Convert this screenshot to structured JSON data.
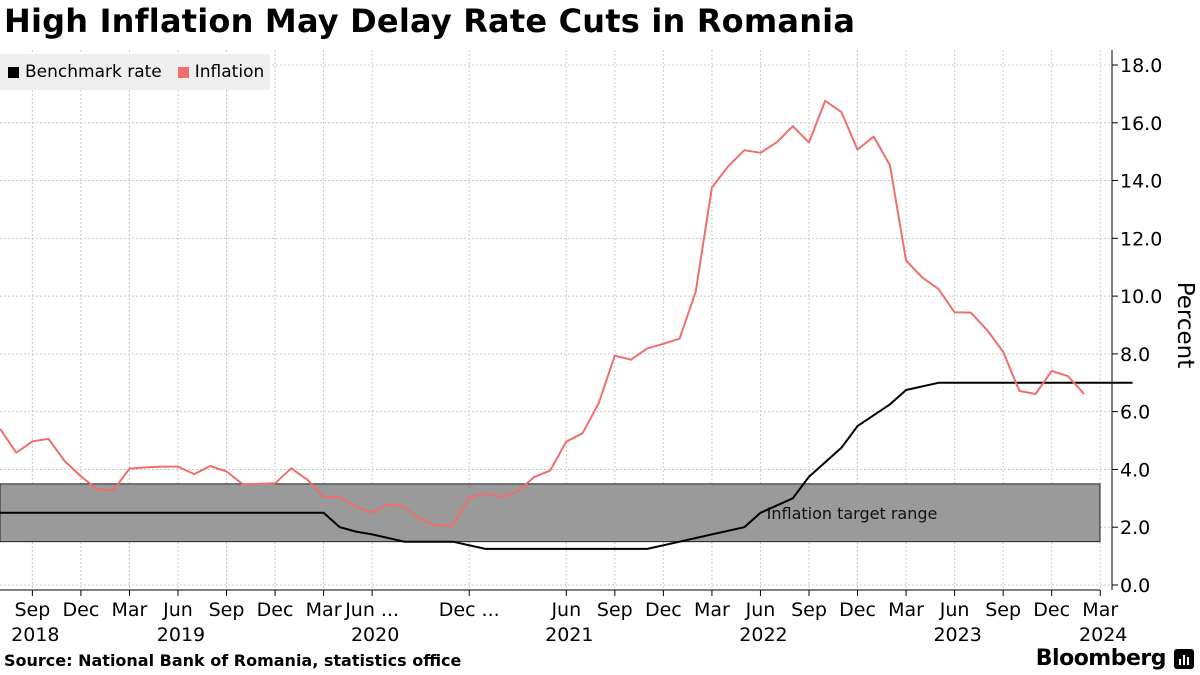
{
  "chart_data": {
    "type": "line",
    "title": "High Inflation May Delay Rate Cuts in Romania",
    "ylabel": "Percent",
    "xlabel": "",
    "ylim": [
      0,
      18
    ],
    "yticks": [
      0,
      2,
      4,
      6,
      8,
      10,
      12,
      14,
      16,
      18
    ],
    "ytick_labels": [
      "0.0",
      "2.0",
      "4.0",
      "6.0",
      "8.0",
      "10.0",
      "12.0",
      "14.0",
      "16.0",
      "18.0"
    ],
    "grid": true,
    "legend_position": "top-left",
    "x_start": "2018-07",
    "x_end": "2024-03",
    "month_ticks": [
      {
        "label": "Sep",
        "month": 2
      },
      {
        "label": "Dec",
        "month": 5
      },
      {
        "label": "Mar",
        "month": 8
      },
      {
        "label": "Jun",
        "month": 11
      },
      {
        "label": "Sep",
        "month": 14
      },
      {
        "label": "Dec",
        "month": 17
      },
      {
        "label": "Mar",
        "month": 20
      },
      {
        "label": "Jun ...",
        "month": 23
      },
      {
        "label": "Dec ...",
        "month": 29
      },
      {
        "label": "Jun",
        "month": 35
      },
      {
        "label": "Sep",
        "month": 38
      },
      {
        "label": "Dec",
        "month": 41
      },
      {
        "label": "Mar",
        "month": 44
      },
      {
        "label": "Jun",
        "month": 47
      },
      {
        "label": "Sep",
        "month": 50
      },
      {
        "label": "Dec",
        "month": 53
      },
      {
        "label": "Mar",
        "month": 56
      },
      {
        "label": "Jun",
        "month": 59
      },
      {
        "label": "Sep",
        "month": 62
      },
      {
        "label": "Dec",
        "month": 65
      },
      {
        "label": "Mar",
        "month": 68
      }
    ],
    "year_labels": [
      {
        "label": "2018",
        "month": 2
      },
      {
        "label": "2019",
        "month": 11
      },
      {
        "label": "2020",
        "month": 23
      },
      {
        "label": "2021",
        "month": 35
      },
      {
        "label": "2022",
        "month": 47
      },
      {
        "label": "2023",
        "month": 59
      },
      {
        "label": "2024",
        "month": 68
      }
    ],
    "target_band": {
      "low": 1.5,
      "high": 3.5,
      "label": "Inflation target range",
      "color": "#9a9a9a"
    },
    "series": [
      {
        "name": "Benchmark rate",
        "color": "#000000",
        "points": [
          [
            0,
            2.5
          ],
          [
            20,
            2.5
          ],
          [
            21,
            2.0
          ],
          [
            22,
            1.85
          ],
          [
            23,
            1.75
          ],
          [
            25,
            1.5
          ],
          [
            28,
            1.5
          ],
          [
            30,
            1.25
          ],
          [
            40,
            1.25
          ],
          [
            42,
            1.5
          ],
          [
            44,
            1.75
          ],
          [
            46,
            2.0
          ],
          [
            47,
            2.5
          ],
          [
            49,
            3.0
          ],
          [
            50,
            3.75
          ],
          [
            52,
            4.75
          ],
          [
            53,
            5.5
          ],
          [
            55,
            6.25
          ],
          [
            56,
            6.75
          ],
          [
            58,
            7.0
          ],
          [
            70,
            7.0
          ]
        ]
      },
      {
        "name": "Inflation",
        "color": "#f26d6d",
        "values": [
          5.41,
          4.58,
          4.97,
          5.06,
          4.29,
          3.76,
          3.32,
          3.27,
          4.03,
          4.07,
          4.1,
          4.1,
          3.84,
          4.12,
          3.93,
          3.49,
          3.5,
          3.52,
          4.04,
          3.64,
          3.05,
          3.05,
          2.71,
          2.5,
          2.8,
          2.7,
          2.26,
          2.06,
          2.06,
          3.03,
          3.16,
          3.05,
          3.24,
          3.73,
          3.96,
          4.96,
          5.25,
          6.29,
          7.94,
          7.8,
          8.19,
          8.35,
          8.53,
          10.15,
          13.76,
          14.49,
          15.05,
          14.96,
          15.32,
          15.88,
          15.32,
          16.76,
          16.37,
          15.07,
          15.52,
          14.53,
          11.23,
          10.64,
          10.25,
          9.44,
          9.43,
          8.83,
          8.07,
          6.72,
          6.61,
          7.41,
          7.23,
          6.61
        ]
      }
    ]
  },
  "legend": {
    "benchmark_label": "Benchmark rate",
    "inflation_label": "Inflation"
  },
  "footer": {
    "source": "Source: National Bank of Romania, statistics office",
    "brand": "Bloomberg"
  }
}
